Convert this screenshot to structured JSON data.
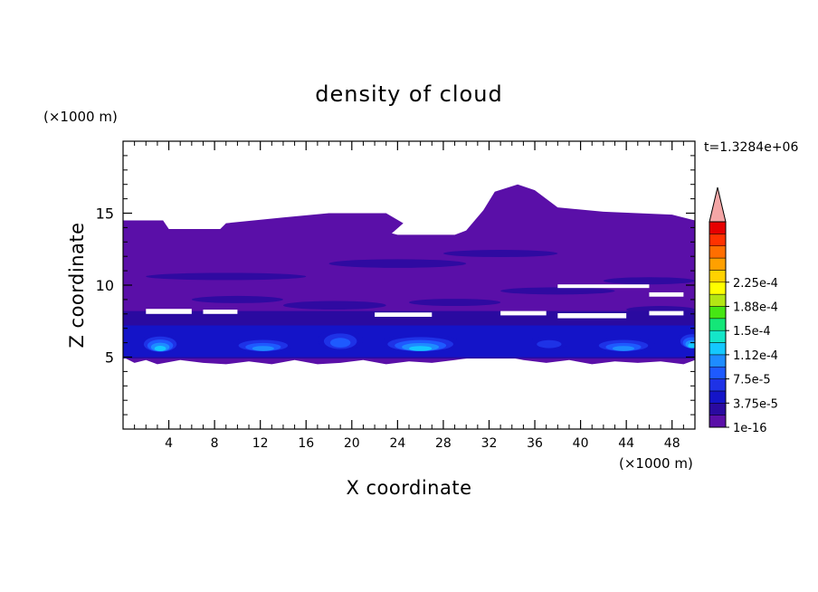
{
  "chart_data": {
    "type": "heatmap",
    "title": "density of cloud",
    "xlabel": "X coordinate",
    "ylabel": "Z coordinate",
    "x_unit": "(×1000 m)",
    "y_unit": "(×1000 m)",
    "time_label": "t=1.3284e+06",
    "xlim": [
      0,
      50
    ],
    "ylim": [
      0,
      20
    ],
    "x_ticks": [
      "4",
      "8",
      "12",
      "16",
      "20",
      "24",
      "28",
      "32",
      "36",
      "40",
      "44",
      "48"
    ],
    "x_tick_values": [
      4,
      8,
      12,
      16,
      20,
      24,
      28,
      32,
      36,
      40,
      44,
      48
    ],
    "y_ticks": [
      "5",
      "10",
      "15"
    ],
    "y_tick_values": [
      5,
      10,
      15
    ],
    "colorbar": {
      "labels": [
        "2.25e-4",
        "1.88e-4",
        "1.5e-4",
        "1.12e-4",
        "7.5e-5",
        "3.75e-5",
        "1e-16"
      ],
      "label_levels": [
        12,
        10,
        8,
        6,
        4,
        2,
        0
      ],
      "colors": [
        "#5a0fa8",
        "#2a0aa0",
        "#1414c8",
        "#1e32e6",
        "#1e5aff",
        "#1e8cff",
        "#14c8ff",
        "#14e6c8",
        "#14e678",
        "#46e614",
        "#b4e614",
        "#ffff00",
        "#ffd200",
        "#ffa000",
        "#ff6e00",
        "#ff3200",
        "#e60000"
      ],
      "extend_color": "#f4a6a6"
    },
    "contours": {
      "cloud_top_km": [
        [
          0,
          14.5
        ],
        [
          3.5,
          14.5
        ],
        [
          4,
          13.9
        ],
        [
          8.5,
          13.9
        ],
        [
          9,
          14.3
        ],
        [
          14,
          14.7
        ],
        [
          18,
          15.0
        ],
        [
          23,
          15.0
        ],
        [
          24.5,
          14.3
        ],
        [
          23.5,
          13.6
        ],
        [
          24,
          13.5
        ],
        [
          29,
          13.5
        ],
        [
          30,
          13.8
        ],
        [
          31.5,
          15.2
        ],
        [
          32.5,
          16.5
        ],
        [
          34.5,
          17.0
        ],
        [
          36,
          16.6
        ],
        [
          38,
          15.4
        ],
        [
          42,
          15.1
        ],
        [
          48,
          14.9
        ],
        [
          50,
          14.5
        ]
      ],
      "cloud_base_km": [
        [
          0,
          5.0
        ],
        [
          1,
          4.6
        ],
        [
          2,
          4.8
        ],
        [
          3,
          4.5
        ],
        [
          5,
          4.8
        ],
        [
          7,
          4.6
        ],
        [
          9,
          4.5
        ],
        [
          11,
          4.7
        ],
        [
          13,
          4.5
        ],
        [
          15,
          4.8
        ],
        [
          17,
          4.5
        ],
        [
          19,
          4.6
        ],
        [
          21,
          4.8
        ],
        [
          23,
          4.5
        ],
        [
          25,
          4.7
        ],
        [
          27,
          4.6
        ],
        [
          29,
          4.8
        ],
        [
          31,
          5.0
        ],
        [
          33,
          5.1
        ],
        [
          35,
          4.8
        ],
        [
          37,
          4.6
        ],
        [
          39,
          4.8
        ],
        [
          41,
          4.5
        ],
        [
          43,
          4.7
        ],
        [
          45,
          4.6
        ],
        [
          47,
          4.7
        ],
        [
          49,
          4.5
        ],
        [
          50,
          4.8
        ]
      ],
      "dense_cores": [
        {
          "x": 1.5,
          "z": 6.0,
          "w": 3.5,
          "h": 1.3,
          "level": 6
        },
        {
          "x": 9.5,
          "z": 5.9,
          "w": 5.5,
          "h": 1.0,
          "level": 5
        },
        {
          "x": 17.0,
          "z": 6.2,
          "w": 4.0,
          "h": 1.5,
          "level": 4
        },
        {
          "x": 22.5,
          "z": 6.0,
          "w": 7.0,
          "h": 1.2,
          "level": 6
        },
        {
          "x": 41.0,
          "z": 5.9,
          "w": 5.5,
          "h": 1.0,
          "level": 5
        },
        {
          "x": 48.5,
          "z": 6.2,
          "w": 2.5,
          "h": 1.2,
          "level": 6
        },
        {
          "x": 35.5,
          "z": 6.0,
          "w": 3.5,
          "h": 0.9,
          "level": 3
        }
      ]
    }
  }
}
